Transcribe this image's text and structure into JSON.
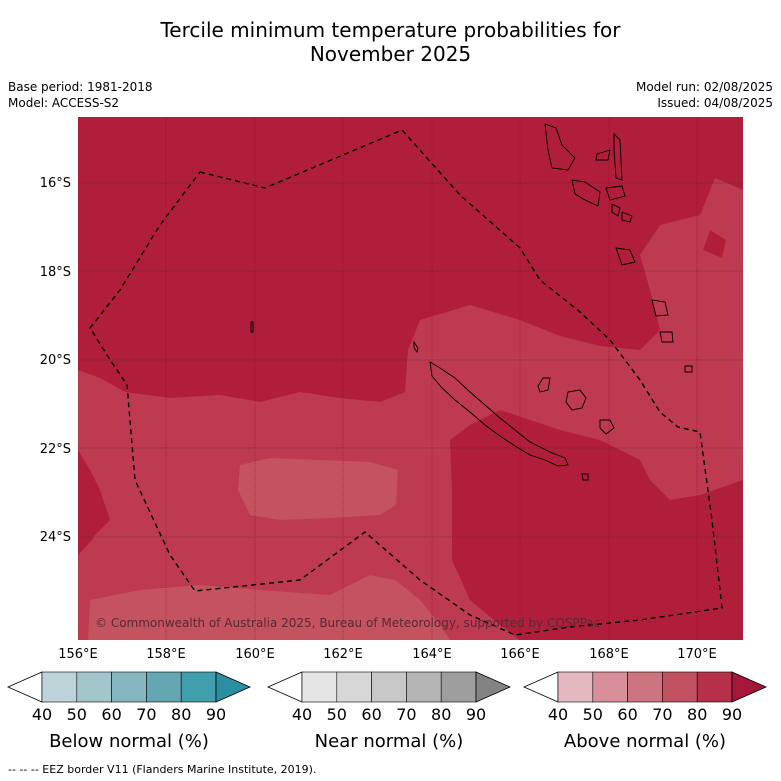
{
  "title_line1": "Tercile minimum temperature probabilities for",
  "title_line2": "November 2025",
  "base_period": "Base period: 1981-2018",
  "model": "Model: ACCESS-S2",
  "model_run": "Model run: 02/08/2025",
  "issued": "Issued: 04/08/2025",
  "copyright": "© Commonwealth of Australia 2025, Bureau of Meteorology, supported by COSPPac",
  "footer": "--  --  -- EEZ border V11 (Flanders Marine Institute, 2019).",
  "map": {
    "lon_labels": [
      "156°E",
      "158°E",
      "160°E",
      "162°E",
      "164°E",
      "166°E",
      "168°E",
      "170°E"
    ],
    "lat_labels": [
      "16°S",
      "18°S",
      "20°S",
      "22°S",
      "24°S"
    ],
    "colors": {
      "above_80_90": "#b01e3b",
      "above_70_80": "#be3a50",
      "above_60_70": "#c4525f"
    }
  },
  "colorbars": [
    {
      "name": "below",
      "label": "Below normal (%)",
      "ticks": [
        "40",
        "50",
        "60",
        "70",
        "80",
        "90"
      ],
      "colors": [
        "#ffffff",
        "#bdd3d9",
        "#a3c6cd",
        "#86b6c0",
        "#64a6b2",
        "#419ead",
        "#2a8fa0"
      ]
    },
    {
      "name": "near",
      "label": "Near normal (%)",
      "ticks": [
        "40",
        "50",
        "60",
        "70",
        "80",
        "90"
      ],
      "colors": [
        "#ffffff",
        "#e5e5e5",
        "#d7d7d7",
        "#c8c8c8",
        "#b5b5b5",
        "#9e9e9e",
        "#838383"
      ]
    },
    {
      "name": "above",
      "label": "Above normal (%)",
      "ticks": [
        "40",
        "50",
        "60",
        "70",
        "80",
        "90"
      ],
      "colors": [
        "#ffffff",
        "#e3b8bf",
        "#d98f99",
        "#cc7480",
        "#c25262",
        "#b6304a",
        "#a5163a"
      ]
    }
  ]
}
